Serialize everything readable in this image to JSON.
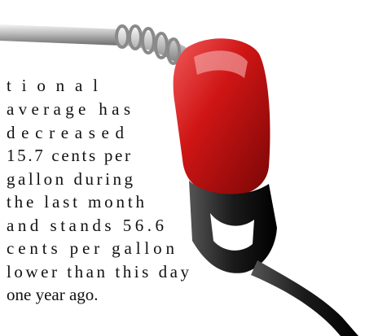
{
  "article": {
    "lines": [
      "tional",
      "average has",
      "decreased",
      "15.7 cents per",
      "gallon during",
      "the last month",
      "and stands 56.6",
      "cents per gallon",
      "lower than this day",
      "one year ago."
    ]
  }
}
